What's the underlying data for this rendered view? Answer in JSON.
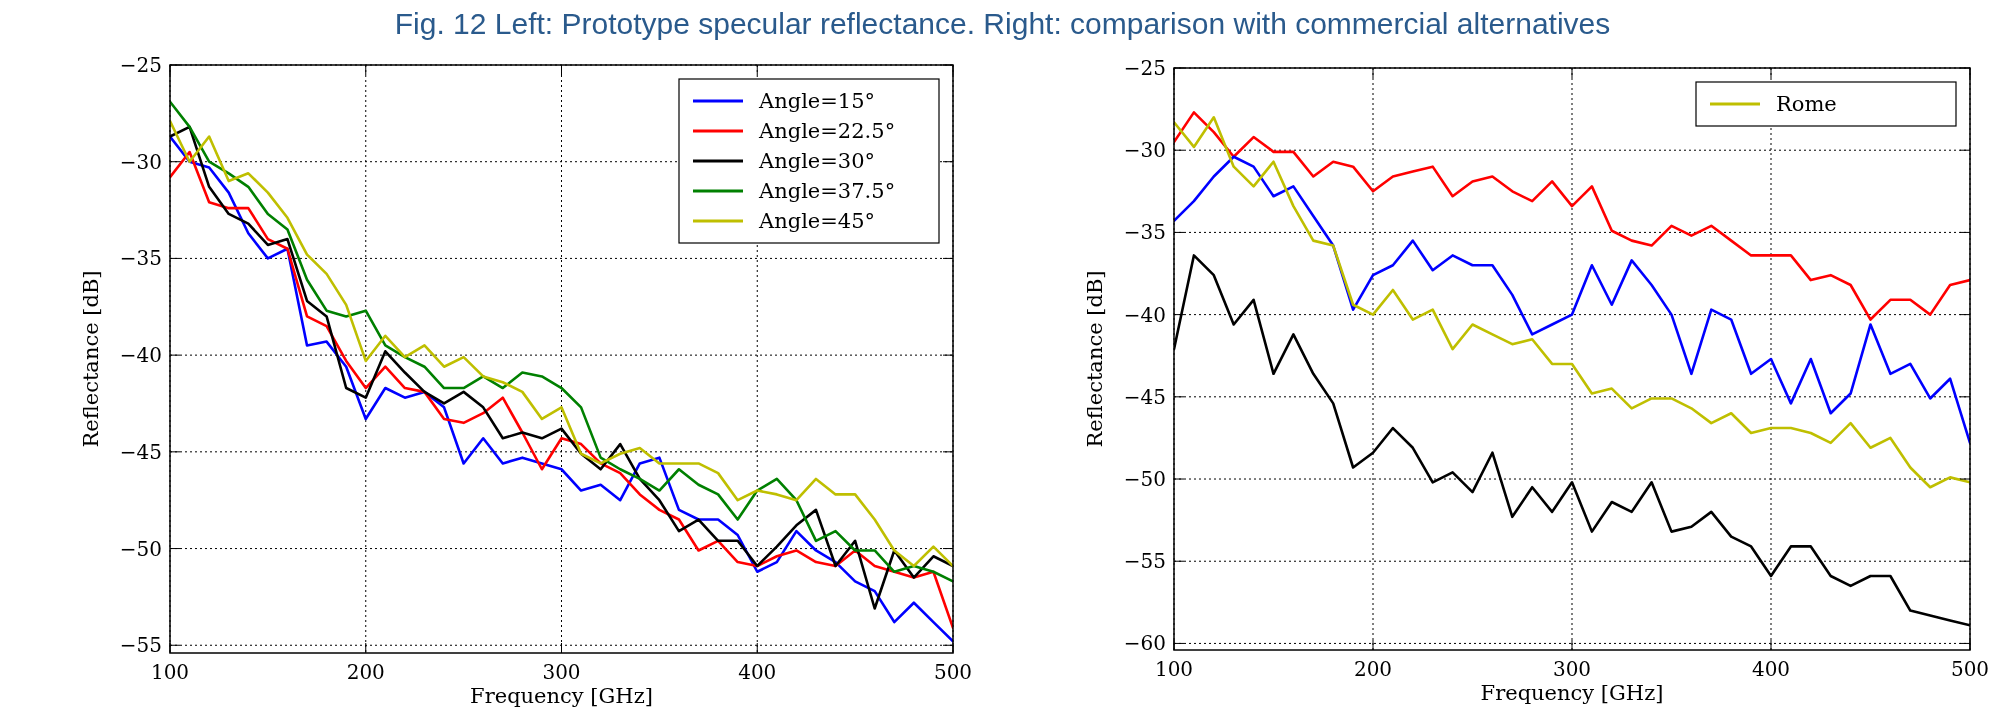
{
  "chart_data": [
    {
      "type": "line",
      "title": "Fig. 12 Left: Prototype specular reflectance. Right: comparison with commercial alternatives",
      "xlabel": "Frequency [GHz]",
      "ylabel": "Reflectance [dB]",
      "x": [
        100,
        110,
        120,
        130,
        140,
        150,
        160,
        170,
        180,
        190,
        200,
        210,
        220,
        230,
        240,
        250,
        260,
        270,
        280,
        290,
        300,
        310,
        320,
        330,
        340,
        350,
        360,
        370,
        380,
        390,
        400,
        410,
        420,
        430,
        440,
        450,
        460,
        470,
        480,
        490,
        500
      ],
      "xlim": [
        100,
        500
      ],
      "xticks": [
        100,
        200,
        300,
        400,
        500
      ],
      "ylim": [
        -55.4,
        -25
      ],
      "yticks": [
        -55,
        -50,
        -45,
        -40,
        -35,
        -30,
        -25
      ],
      "grid": true,
      "legend": "top right",
      "series": [
        {
          "name": "Angle=15°",
          "color": "#0000ff",
          "values": [
            -28.7,
            -30,
            -30.3,
            -31.6,
            -33.7,
            -35,
            -34.5,
            -39.5,
            -39.3,
            -40.6,
            -43.3,
            -41.7,
            -42.2,
            -41.9,
            -42.7,
            -45.6,
            -44.3,
            -45.6,
            -45.3,
            -45.6,
            -45.9,
            -47,
            -46.7,
            -47.5,
            -45.6,
            -45.3,
            -48,
            -48.5,
            -48.5,
            -49.3,
            -51.2,
            -50.7,
            -49.1,
            -50.1,
            -50.7,
            -51.7,
            -52.2,
            -53.8,
            -52.8,
            -53.8,
            -54.8
          ]
        },
        {
          "name": "Angle=22.5°",
          "color": "#ff0000",
          "values": [
            -30.8,
            -29.5,
            -32.1,
            -32.4,
            -32.4,
            -34,
            -34.5,
            -38,
            -38.5,
            -40.3,
            -41.7,
            -40.6,
            -41.7,
            -41.9,
            -43.3,
            -43.5,
            -43,
            -42.2,
            -44,
            -45.9,
            -44.3,
            -44.6,
            -45.6,
            -46.1,
            -47.2,
            -48,
            -48.5,
            -50.1,
            -49.6,
            -50.7,
            -50.9,
            -50.4,
            -50.1,
            -50.7,
            -50.9,
            -50.1,
            -50.9,
            -51.2,
            -51.5,
            -51.2,
            -54.1
          ]
        },
        {
          "name": "Angle=30°",
          "color": "#000000",
          "values": [
            -28.7,
            -28.2,
            -31.3,
            -32.7,
            -33.2,
            -34.3,
            -34,
            -37.2,
            -38,
            -41.7,
            -42.2,
            -39.8,
            -40.9,
            -41.9,
            -42.5,
            -41.9,
            -42.7,
            -44.3,
            -44,
            -44.3,
            -43.8,
            -45.1,
            -45.9,
            -44.6,
            -46.4,
            -47.5,
            -49.1,
            -48.5,
            -49.6,
            -49.6,
            -50.9,
            -49.9,
            -48.8,
            -48,
            -50.9,
            -49.6,
            -53.1,
            -50.1,
            -51.5,
            -50.4,
            -50.9
          ]
        },
        {
          "name": "Angle=37.5°",
          "color": "#008000",
          "values": [
            -26.9,
            -28.2,
            -30,
            -30.6,
            -31.3,
            -32.7,
            -33.5,
            -36.1,
            -37.7,
            -38,
            -37.7,
            -39.5,
            -40.1,
            -40.6,
            -41.7,
            -41.7,
            -41.1,
            -41.7,
            -40.9,
            -41.1,
            -41.7,
            -42.7,
            -45.3,
            -45.9,
            -46.4,
            -47,
            -45.9,
            -46.7,
            -47.2,
            -48.5,
            -47,
            -46.4,
            -47.5,
            -49.6,
            -49.1,
            -50.1,
            -50.1,
            -51.2,
            -50.9,
            -51.2,
            -51.7
          ]
        },
        {
          "name": "Angle=45°",
          "color": "#bfbf00",
          "values": [
            -27.9,
            -30,
            -28.7,
            -31,
            -30.6,
            -31.6,
            -32.9,
            -34.8,
            -35.8,
            -37.4,
            -40.3,
            -39,
            -40.1,
            -39.5,
            -40.6,
            -40.1,
            -41.1,
            -41.4,
            -41.9,
            -43.3,
            -42.7,
            -45.1,
            -45.6,
            -45.1,
            -44.8,
            -45.6,
            -45.6,
            -45.6,
            -46.1,
            -47.5,
            -47,
            -47.2,
            -47.5,
            -46.4,
            -47.2,
            -47.2,
            -48.5,
            -50.1,
            -50.9,
            -49.9,
            -50.9
          ]
        }
      ]
    },
    {
      "type": "line",
      "xlabel": "Frequency [GHz]",
      "ylabel": "Reflectance [dB]",
      "x": [
        100,
        110,
        120,
        130,
        140,
        150,
        160,
        170,
        180,
        190,
        200,
        210,
        220,
        230,
        240,
        250,
        260,
        270,
        280,
        290,
        300,
        310,
        320,
        330,
        340,
        350,
        360,
        370,
        380,
        390,
        400,
        410,
        420,
        430,
        440,
        450,
        460,
        470,
        480,
        490,
        500
      ],
      "xlim": [
        100,
        500
      ],
      "xticks": [
        100,
        200,
        300,
        400,
        500
      ],
      "ylim": [
        -60.4,
        -25
      ],
      "yticks": [
        -60,
        -55,
        -50,
        -45,
        -40,
        -35,
        -30,
        -25
      ],
      "grid": true,
      "legend": "top right",
      "series": [
        {
          "color": "#ff0000",
          "values": [
            -29.5,
            -27.7,
            -28.9,
            -30.4,
            -29.2,
            -30.1,
            -30.1,
            -31.6,
            -30.7,
            -31,
            -32.5,
            -31.6,
            -31.3,
            -31,
            -32.8,
            -31.9,
            -31.6,
            -32.5,
            -33.1,
            -31.9,
            -33.4,
            -32.2,
            -34.9,
            -35.5,
            -35.8,
            -34.6,
            -35.2,
            -34.6,
            -35.5,
            -36.4,
            -36.4,
            -36.4,
            -37.9,
            -37.6,
            -38.2,
            -40.3,
            -39.1,
            -39.1,
            -40,
            -38.2,
            -37.9
          ]
        },
        {
          "color": "#0000ff",
          "values": [
            -34.3,
            -33.1,
            -31.6,
            -30.4,
            -31,
            -32.8,
            -32.2,
            -34,
            -35.8,
            -39.7,
            -37.6,
            -37,
            -35.5,
            -37.3,
            -36.4,
            -37,
            -37,
            -38.8,
            -41.2,
            -40.6,
            -40,
            -37,
            -39.4,
            -36.7,
            -38.2,
            -40,
            -43.6,
            -39.7,
            -40.3,
            -43.6,
            -42.7,
            -45.4,
            -42.7,
            -46,
            -44.8,
            -40.6,
            -43.6,
            -43,
            -45.1,
            -43.9,
            -47.8
          ]
        },
        {
          "color": "#000000",
          "values": [
            -42.1,
            -36.4,
            -37.6,
            -40.6,
            -39.1,
            -43.6,
            -41.2,
            -43.6,
            -45.4,
            -49.3,
            -48.4,
            -46.9,
            -48.1,
            -50.2,
            -49.6,
            -50.8,
            -48.4,
            -52.3,
            -50.5,
            -52,
            -50.2,
            -53.2,
            -51.4,
            -52,
            -50.2,
            -53.2,
            -52.9,
            -52,
            -53.5,
            -54.1,
            -55.9,
            -54.1,
            -54.1,
            -55.9,
            -56.5,
            -55.9,
            -55.9,
            -58,
            -58.3,
            -58.6,
            -58.9
          ]
        },
        {
          "name": "Rome",
          "color": "#bfbf00",
          "values": [
            -28.3,
            -29.8,
            -28,
            -31,
            -32.2,
            -30.7,
            -33.4,
            -35.5,
            -35.8,
            -39.4,
            -40,
            -38.5,
            -40.3,
            -39.7,
            -42.1,
            -40.6,
            -41.2,
            -41.8,
            -41.5,
            -43,
            -43,
            -44.8,
            -44.5,
            -45.7,
            -45.1,
            -45.1,
            -45.7,
            -46.6,
            -46,
            -47.2,
            -46.9,
            -46.9,
            -47.2,
            -47.8,
            -46.6,
            -48.1,
            -47.5,
            -49.3,
            -50.5,
            -49.9,
            -50.2
          ]
        }
      ]
    }
  ]
}
